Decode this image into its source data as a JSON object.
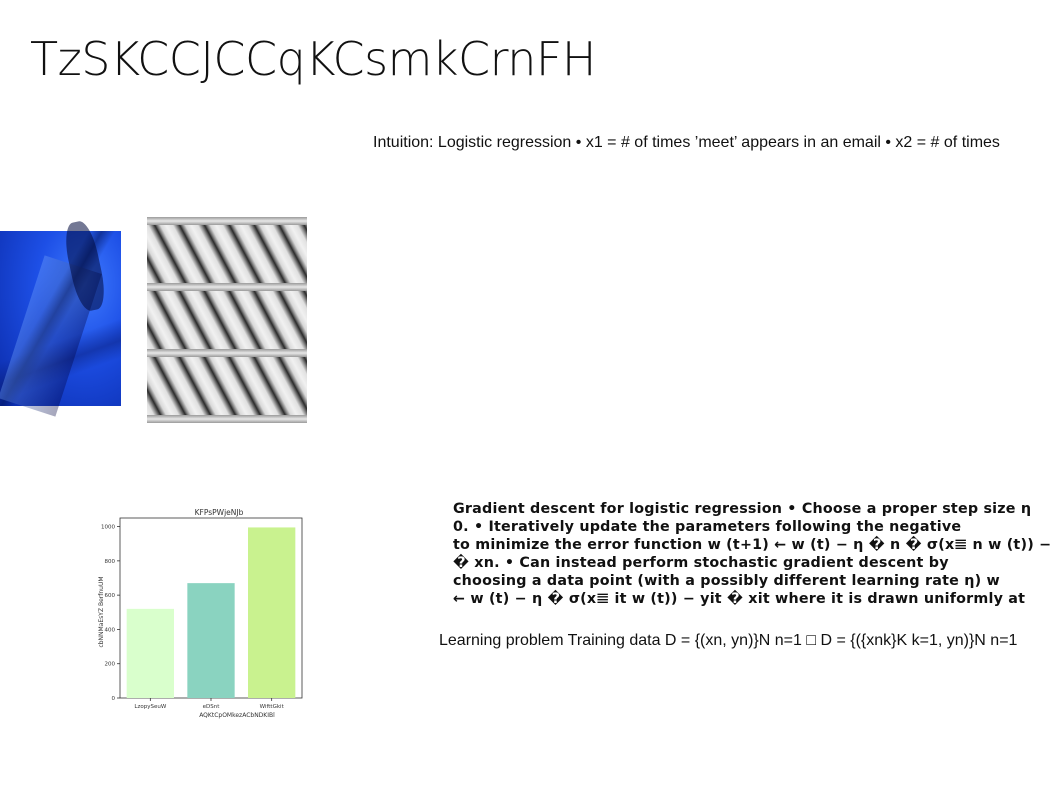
{
  "slide": {
    "title": "TzSKCCJCCqKCsmkCrnFH",
    "intuition_text": "Intuition: Logistic regression • x1 = # of times ’meet’ appears in an email • x2 = # of times",
    "gradient_lines": [
      "Gradient descent for logistic regression • Choose a proper step size η",
      "0. • Iteratively update the parameters following the negative",
      "to minimize the error function w (t+1) ← w (t) − η � n � σ(x𝌆 n w (t)) −",
      "� xn. • Can instead perform stochastic gradient descent by",
      "choosing a data point (with a possibly different learning rate η) w",
      "← w (t) − η � σ(x𝌆 it w (t)) − yit � xit where it is drawn uniformly at"
    ],
    "learning_text": "Learning problem Training data D = {(xn, yn)}N n=1 □ D = {({xnk}K k=1, yn)}N n=1"
  },
  "chart_data": {
    "type": "bar",
    "title": "KFPsPWjeNJb",
    "xlabel": "AQKtCpOMkezACbNDKIBl",
    "ylabel": "cbNNMaEsYZ BerfnuUM",
    "categories": [
      "LzopySeuW",
      "eDSnt",
      "WifttGkit"
    ],
    "values": [
      520,
      670,
      995
    ],
    "colors": [
      "#d9ffcc",
      "#8ad3c0",
      "#c9f28f"
    ],
    "ylim": [
      0,
      1050
    ],
    "yticks": [
      0,
      200,
      400,
      600,
      800,
      1000
    ],
    "grid": false
  }
}
